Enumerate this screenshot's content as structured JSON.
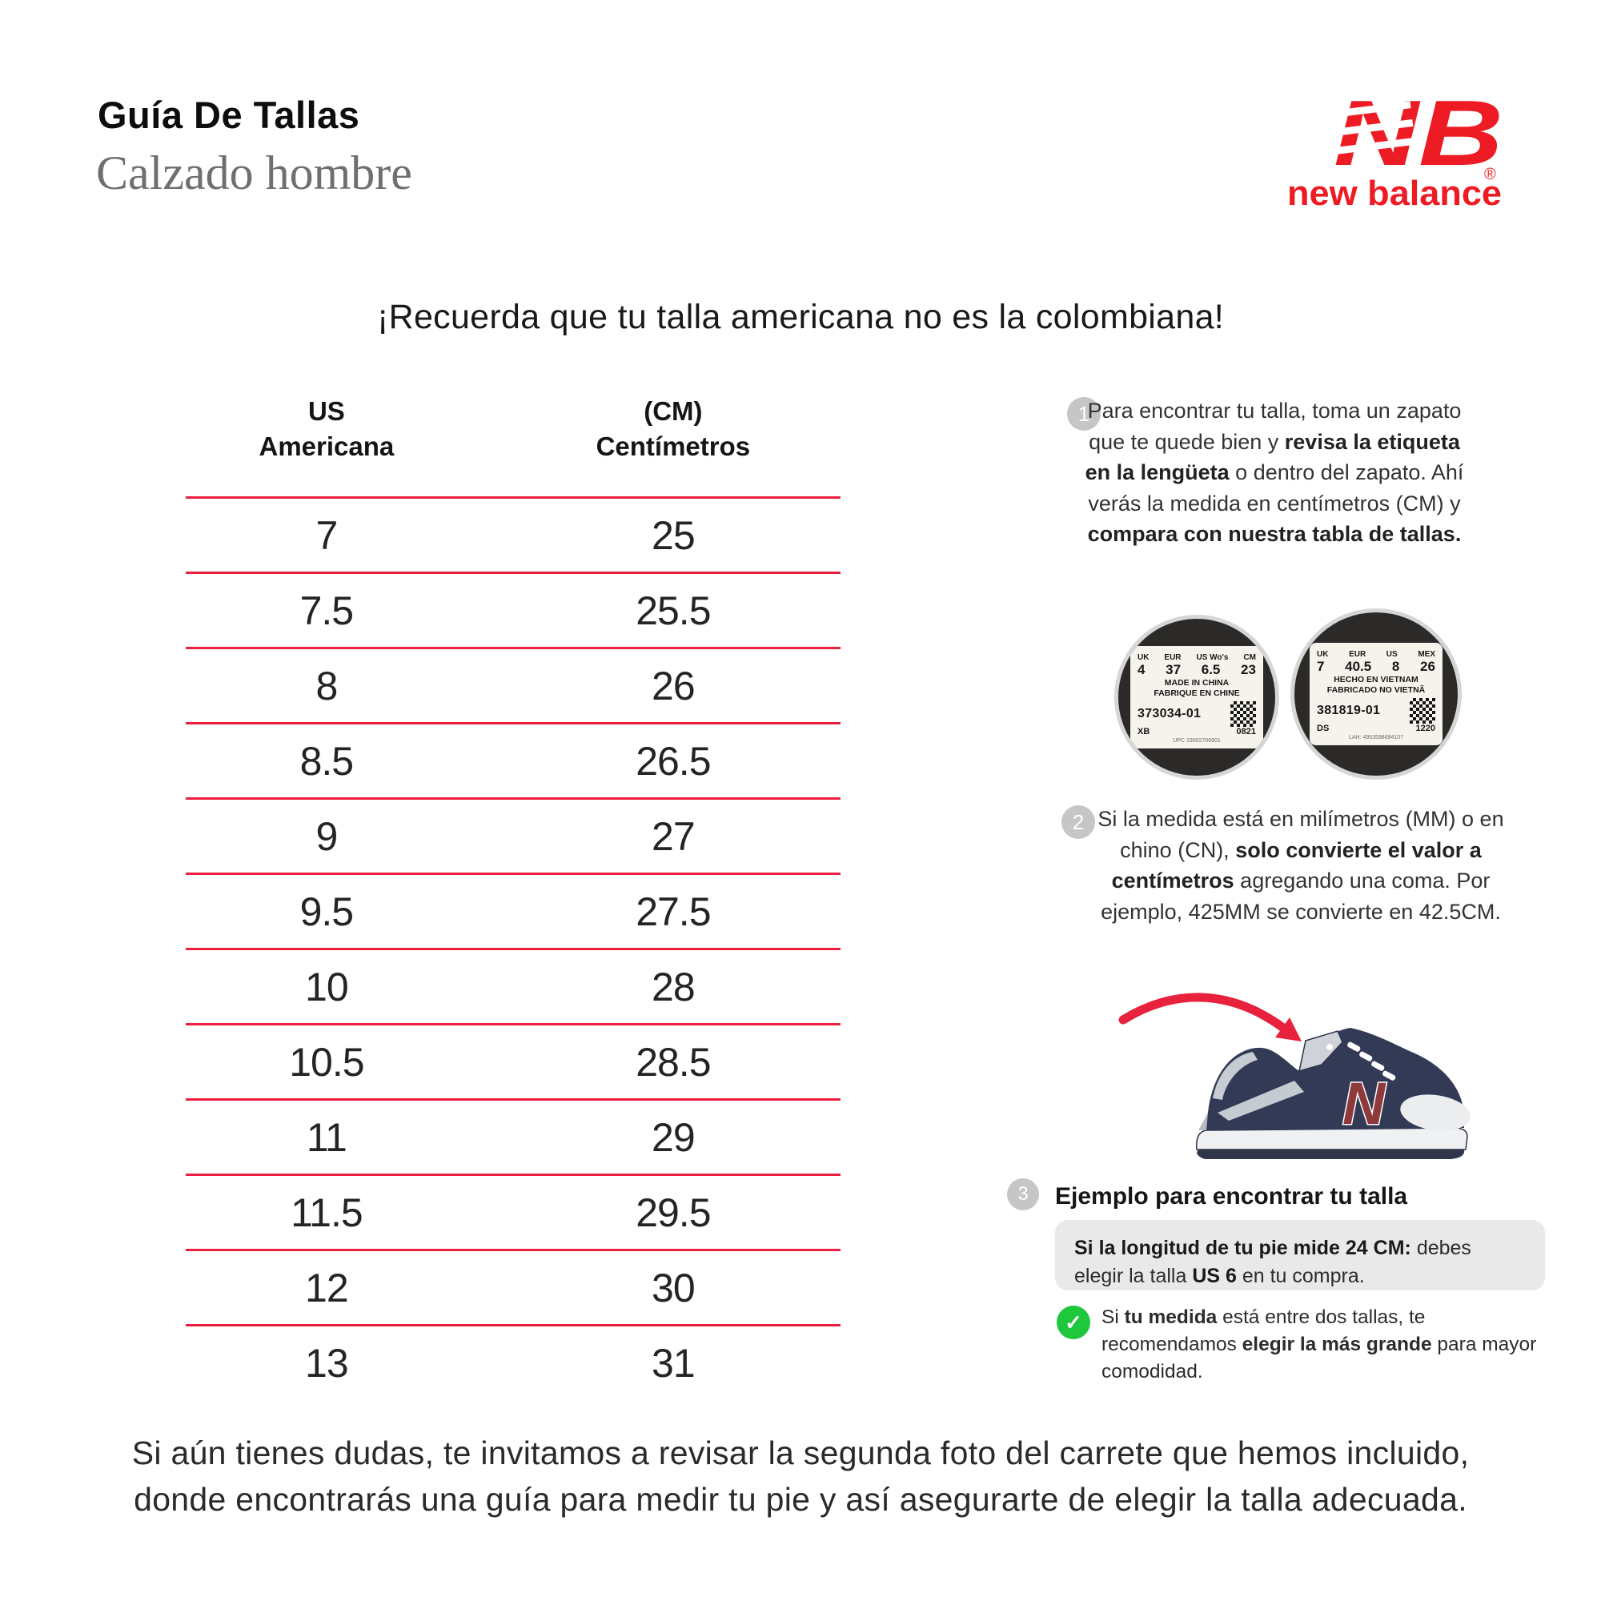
{
  "header": {
    "title": "Guía De Tallas",
    "subtitle": "Calzado hombre",
    "reminder": "¡Recuerda que tu talla americana no es la colombiana!"
  },
  "brand": {
    "monogram": "NB",
    "registered": "®",
    "wordmark": "new balance",
    "color": "#ED1C24"
  },
  "size_table": {
    "type": "table",
    "headers": {
      "us": [
        "US",
        "Americana"
      ],
      "cm": [
        "(CM)",
        "Centímetros"
      ]
    },
    "rows": [
      [
        "7",
        "25"
      ],
      [
        "7.5",
        "25.5"
      ],
      [
        "8",
        "26"
      ],
      [
        "8.5",
        "26.5"
      ],
      [
        "9",
        "27"
      ],
      [
        "9.5",
        "27.5"
      ],
      [
        "10",
        "28"
      ],
      [
        "10.5",
        "28.5"
      ],
      [
        "11",
        "29"
      ],
      [
        "11.5",
        "29.5"
      ],
      [
        "12",
        "30"
      ],
      [
        "13",
        "31"
      ]
    ],
    "line_color": "#EC1E3F"
  },
  "steps": [
    {
      "number": "1",
      "segments": [
        {
          "text": "Para encontrar tu talla, toma un zapato que te quede bien y "
        },
        {
          "text": "revisa la etiqueta en la lengüeta",
          "bold": true
        },
        {
          "text": " o dentro del zapato. Ahí verás la medida en centímetros (CM) y "
        },
        {
          "text": "compara con nuestra tabla de tallas.",
          "bold": true
        }
      ]
    },
    {
      "number": "2",
      "segments": [
        {
          "text": "Si la medida está en milímetros (MM) o en chino (CN), "
        },
        {
          "text": "solo convierte el valor a centímetros",
          "bold": true
        },
        {
          "text": " agregando una coma. Por ejemplo, 425MM se convierte en 42.5CM."
        }
      ]
    },
    {
      "number": "3",
      "heading": "Ejemplo para encontrar tu talla"
    }
  ],
  "example": {
    "segments": [
      {
        "text": "Si la longitud de tu pie mide 24 CM:",
        "bold": true
      },
      {
        "text": " debes elegir la talla "
      },
      {
        "text": "US 6",
        "bold": true
      },
      {
        "text": " en tu compra."
      }
    ]
  },
  "tip": {
    "check_icon": "✓",
    "color": "#1FC73C",
    "segments": [
      {
        "text": "Si "
      },
      {
        "text": "tu medida",
        "bold": true
      },
      {
        "text": " está entre dos tallas, te recomendamos "
      },
      {
        "text": "elegir la más grande",
        "bold": true
      },
      {
        "text": " para mayor comodidad."
      }
    ]
  },
  "labels": [
    {
      "cols": [
        "UK",
        "EUR",
        "US Wo's",
        "CM"
      ],
      "values": [
        "4",
        "37",
        "6.5",
        "23"
      ],
      "line1": "MADE IN CHINA",
      "line2": "FABRIQUE EN CHINE",
      "code": "373034-01",
      "sub": [
        "XB",
        "0821"
      ],
      "tiny": "UPC 19002706901"
    },
    {
      "cols": [
        "UK",
        "EUR",
        "US",
        "MEX"
      ],
      "values": [
        "7",
        "40.5",
        "8",
        "26"
      ],
      "line1": "HECHO EN VIETNAM",
      "line2": "FABRICADO NO VIETNÃ",
      "code": "381819-01",
      "sub": [
        "DS",
        "1220"
      ],
      "tiny": "LAH: 4953598894107"
    }
  ],
  "shoe": {
    "logo_letter": "N",
    "body_color": "#333A56",
    "n_color": "#8E3A3A",
    "arrow_color": "#E8213C"
  },
  "footer": {
    "line1": "Si aún tienes dudas, te invitamos a revisar la segunda foto del carrete que hemos incluido,",
    "line2": "donde encontrarás una guía para medir tu pie y así asegurarte de elegir la talla adecuada."
  }
}
